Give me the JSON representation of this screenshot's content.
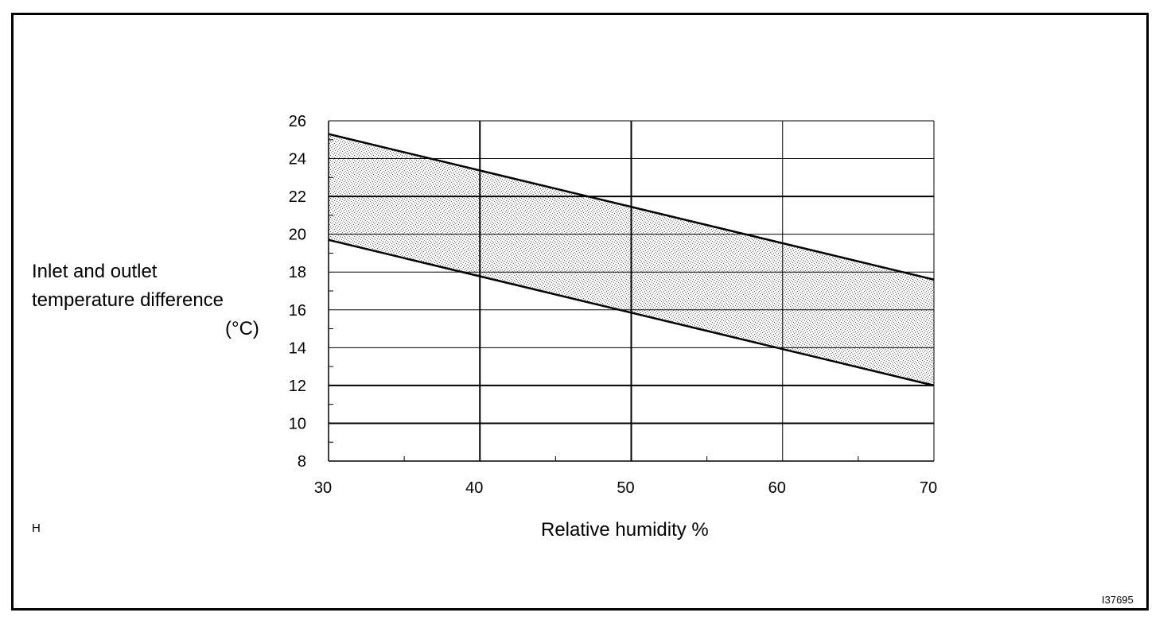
{
  "chart_data": {
    "type": "area",
    "ylabel_lines": [
      "Inlet and outlet",
      "temperature difference",
      "(°C)"
    ],
    "xlabel": "Relative humidity   %",
    "xlim": [
      30,
      70
    ],
    "ylim": [
      8,
      26
    ],
    "x_ticks": [
      30,
      40,
      50,
      60,
      70
    ],
    "y_ticks": [
      8,
      10,
      12,
      14,
      16,
      18,
      20,
      22,
      24,
      26
    ],
    "grid": true,
    "band": {
      "upper": [
        {
          "x": 30,
          "y": 25.3
        },
        {
          "x": 70,
          "y": 17.6
        }
      ],
      "lower": [
        {
          "x": 30,
          "y": 19.7
        },
        {
          "x": 70,
          "y": 12.0
        }
      ]
    },
    "fill_pattern": "stippled gray"
  },
  "corner_mark": "H",
  "figure_id": "I37695"
}
